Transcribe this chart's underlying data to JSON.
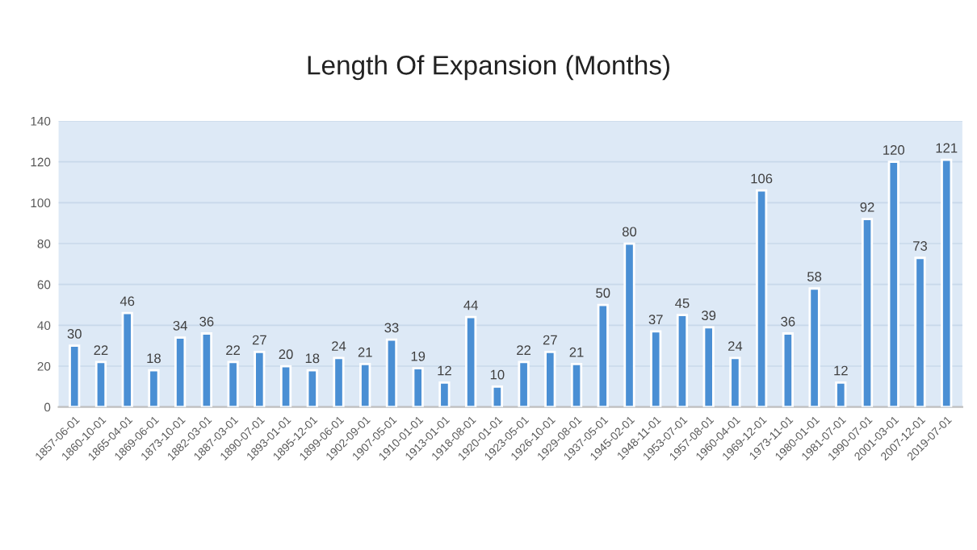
{
  "chart_data": {
    "type": "bar",
    "title": "Length Of Expansion (Months)",
    "categories": [
      "1857-06-01",
      "1860-10-01",
      "1865-04-01",
      "1869-06-01",
      "1873-10-01",
      "1882-03-01",
      "1887-03-01",
      "1890-07-01",
      "1893-01-01",
      "1895-12-01",
      "1899-06-01",
      "1902-09-01",
      "1907-05-01",
      "1910-01-01",
      "1913-01-01",
      "1918-08-01",
      "1920-01-01",
      "1923-05-01",
      "1926-10-01",
      "1929-08-01",
      "1937-05-01",
      "1945-02-01",
      "1948-11-01",
      "1953-07-01",
      "1957-08-01",
      "1960-04-01",
      "1969-12-01",
      "1973-11-01",
      "1980-01-01",
      "1981-07-01",
      "1990-07-01",
      "2001-03-01",
      "2007-12-01",
      "2019-07-01"
    ],
    "values": [
      30,
      22,
      46,
      18,
      34,
      36,
      22,
      27,
      20,
      18,
      24,
      21,
      33,
      19,
      12,
      44,
      10,
      22,
      27,
      21,
      50,
      80,
      37,
      45,
      39,
      24,
      106,
      36,
      58,
      12,
      92,
      120,
      73,
      121
    ],
    "color": "#4a8fd4",
    "ylim": [
      0,
      140
    ],
    "yticks": [
      0,
      20,
      40,
      60,
      80,
      100,
      120,
      140
    ],
    "grid": "y",
    "data_labels": true
  }
}
